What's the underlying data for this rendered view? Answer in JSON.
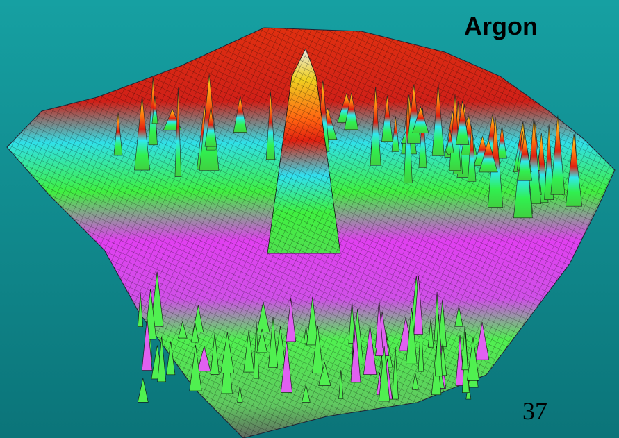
{
  "title": "Argon",
  "page_number": 37
}
